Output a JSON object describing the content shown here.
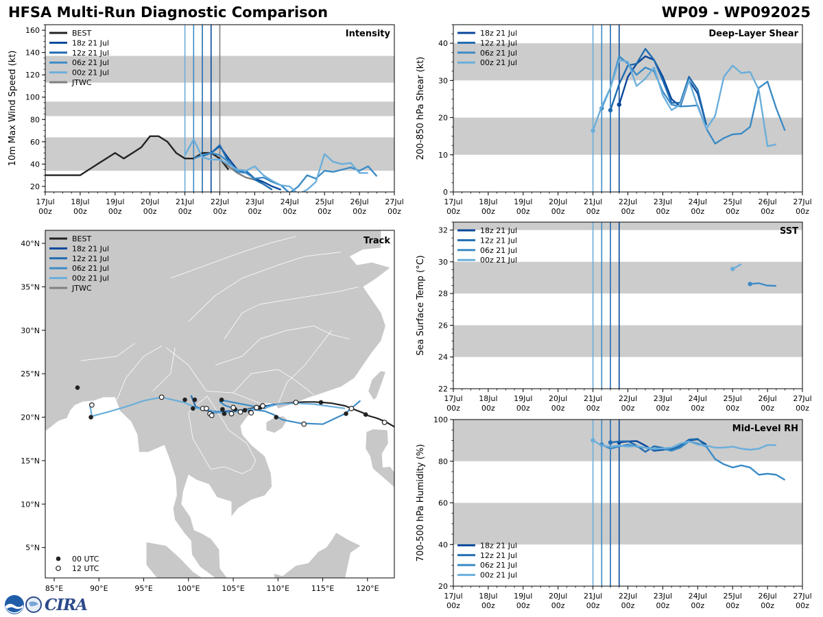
{
  "header": {
    "title": "HFSA Multi-Run Diagnostic Comparison",
    "storm_id": "WP09 - WP092025"
  },
  "logo": {
    "text": "CIRA"
  },
  "colors": {
    "BEST": "#222222",
    "18z 21 Jul": "#08479a",
    "12z 21 Jul": "#1f6bb0",
    "06z 21 Jul": "#3b8bc6",
    "00z 21 Jul": "#6aaedb",
    "JTWC": "#7f7f7f",
    "shade": "#cccccc",
    "land": "#c8c8c8",
    "border": "#ffffff"
  },
  "time_axis": {
    "ticks": [
      "17Jul 00z",
      "18Jul 00z",
      "19Jul 00z",
      "20Jul 00z",
      "21Jul 00z",
      "22Jul 00z",
      "23Jul 00z",
      "24Jul 00z",
      "25Jul 00z",
      "26Jul 00z",
      "27Jul 00z"
    ],
    "init_lines": [
      {
        "name": "00z 21 Jul",
        "t": 4.0
      },
      {
        "name": "06z 21 Jul",
        "t": 4.25
      },
      {
        "name": "12z 21 Jul",
        "t": 4.5
      },
      {
        "name": "18z 21 Jul",
        "t": 4.75
      }
    ],
    "jtwc_line": 5.0
  },
  "chart_data": [
    {
      "id": "intensity",
      "type": "line",
      "title": "Intensity",
      "ylabel": "10m Max Wind Speed (kt)",
      "xlim": [
        0,
        10
      ],
      "ylim": [
        15,
        165
      ],
      "yticks": [
        20,
        40,
        60,
        80,
        100,
        120,
        140,
        160
      ],
      "shaded_bands": [
        [
          34,
          64
        ],
        [
          83,
          96
        ],
        [
          113,
          137
        ]
      ],
      "legend": [
        "BEST",
        "18z 21 Jul",
        "12z 21 Jul",
        "06z 21 Jul",
        "00z 21 Jul",
        "JTWC"
      ],
      "legend_position": "top-left",
      "series": [
        {
          "name": "BEST",
          "x": [
            0,
            0.5,
            1,
            1.5,
            2,
            2.25,
            2.5,
            2.75,
            3,
            3.25,
            3.5,
            3.75,
            4,
            4.25,
            4.5,
            4.75,
            5,
            5.25
          ],
          "y": [
            30,
            30,
            30,
            40,
            50,
            45,
            50,
            55,
            65,
            65,
            60,
            50,
            45,
            45,
            50,
            50,
            45,
            35
          ]
        },
        {
          "name": "JTWC",
          "x": [
            5.0,
            5.25,
            5.5,
            5.75,
            6.0,
            6.25
          ],
          "y": [
            45,
            38,
            32,
            28,
            26,
            24
          ]
        },
        {
          "name": "18z 21 Jul",
          "x": [
            4.75,
            5.0,
            5.25,
            5.5,
            5.75,
            6.0,
            6.25,
            6.5,
            6.75
          ],
          "y": [
            50,
            56,
            45,
            35,
            34,
            27,
            24,
            20,
            17
          ]
        },
        {
          "name": "12z 21 Jul",
          "x": [
            4.5,
            4.75,
            5.0,
            5.25,
            5.5,
            5.75,
            6.0,
            6.25,
            6.5
          ],
          "y": [
            47,
            50,
            57,
            42,
            33,
            34,
            26,
            22,
            17
          ]
        },
        {
          "name": "06z 21 Jul",
          "x": [
            4.25,
            4.5,
            4.75,
            5.0,
            5.25,
            5.5,
            5.75,
            6.0,
            6.25,
            6.5,
            6.75,
            7.0,
            7.25,
            7.5,
            7.75,
            8.0,
            8.25,
            8.5,
            8.75,
            9.0,
            9.25,
            9.5
          ],
          "y": [
            45,
            48,
            50,
            48,
            42,
            33,
            32,
            27,
            28,
            24,
            21,
            14,
            20,
            30,
            27,
            34,
            33,
            35,
            37,
            34,
            38,
            29
          ]
        },
        {
          "name": "00z 21 Jul",
          "x": [
            4.0,
            4.25,
            4.5,
            4.75,
            5.0,
            5.25,
            5.5,
            5.75,
            6.0,
            6.25,
            6.5,
            6.75,
            7.0,
            7.25,
            7.5,
            7.75,
            8.0,
            8.25,
            8.5,
            8.75,
            9.0,
            9.25
          ],
          "y": [
            48,
            62,
            46,
            44,
            44,
            40,
            35,
            34,
            38,
            30,
            25,
            21,
            20,
            13,
            17,
            24,
            49,
            42,
            40,
            41,
            32,
            32
          ]
        }
      ]
    },
    {
      "id": "shear",
      "type": "line",
      "title": "Deep-Layer Shear",
      "ylabel": "200-850 hPa Shear (kt)",
      "xlim": [
        0,
        10
      ],
      "ylim": [
        0,
        45
      ],
      "yticks": [
        0,
        10,
        20,
        30,
        40
      ],
      "shaded_bands": [
        [
          10,
          20
        ],
        [
          30,
          40
        ]
      ],
      "legend": [
        "18z 21 Jul",
        "12z 21 Jul",
        "06z 21 Jul",
        "00z 21 Jul"
      ],
      "legend_position": "top-left",
      "series": [
        {
          "name": "18z 21 Jul",
          "x": [
            4.75,
            5.0,
            5.25,
            5.5,
            5.75,
            6.0,
            6.25,
            6.5,
            6.75,
            7.0,
            7.25
          ],
          "y": [
            23.5,
            31,
            34.5,
            36.5,
            35.5,
            31,
            25,
            23,
            30,
            26.5,
            18
          ]
        },
        {
          "name": "12z 21 Jul",
          "x": [
            4.5,
            4.75,
            5.0,
            5.25,
            5.5,
            5.75,
            6.0,
            6.25,
            6.5,
            6.75,
            7.0,
            7.25
          ],
          "y": [
            22,
            29,
            34,
            34.5,
            38.5,
            35.5,
            30,
            24,
            24,
            31,
            27.5,
            18
          ]
        },
        {
          "name": "06z 21 Jul",
          "x": [
            4.25,
            4.5,
            4.75,
            5.0,
            5.25,
            5.5,
            5.75,
            6.0,
            6.25,
            6.5,
            6.75,
            7.0,
            7.25,
            7.5,
            7.75,
            8.0,
            8.25,
            8.5,
            8.75,
            9.0,
            9.25,
            9.5
          ],
          "y": [
            22.5,
            28,
            36.5,
            34.5,
            31.5,
            33.5,
            32.5,
            27,
            23.5,
            23,
            23.1,
            23.3,
            17,
            13,
            14.5,
            15.5,
            15.7,
            17.5,
            28,
            29.7,
            22.5,
            16.5
          ]
        },
        {
          "name": "00z 21 Jul",
          "x": [
            4.0,
            4.25,
            4.5,
            4.75,
            5.0,
            5.25,
            5.5,
            5.75,
            6.0,
            6.25,
            6.5,
            6.75,
            7.0,
            7.25,
            7.5,
            7.75,
            8.0,
            8.25,
            8.5,
            8.75,
            9.0,
            9.25
          ],
          "y": [
            16.5,
            23,
            28,
            35.5,
            35,
            28.5,
            30.5,
            33.5,
            26,
            22,
            23.5,
            30,
            23,
            17,
            20.5,
            31,
            34,
            32,
            32.3,
            27.5,
            12.3,
            12.8
          ]
        }
      ]
    },
    {
      "id": "sst",
      "type": "line",
      "title": "SST",
      "ylabel": "Sea Surface Temp (°C)",
      "xlim": [
        0,
        10
      ],
      "ylim": [
        22,
        32.5
      ],
      "yticks": [
        22,
        24,
        26,
        28,
        30,
        32
      ],
      "shaded_bands": [
        [
          24,
          26
        ],
        [
          28,
          30
        ],
        [
          32,
          32.5
        ]
      ],
      "legend": [
        "18z 21 Jul",
        "12z 21 Jul",
        "06z 21 Jul",
        "00z 21 Jul"
      ],
      "legend_position": "top-left",
      "series": [
        {
          "name": "06z 21 Jul",
          "x": [
            8.5,
            8.75,
            9.0,
            9.25
          ],
          "y": [
            28.6,
            28.65,
            28.5,
            28.48
          ]
        },
        {
          "name": "00z 21 Jul",
          "x": [
            8.0,
            8.25
          ],
          "y": [
            29.55,
            29.85
          ]
        }
      ]
    },
    {
      "id": "rh",
      "type": "line",
      "title": "Mid-Level RH",
      "ylabel": "700-500 hPa Humidity (%)",
      "xlim": [
        0,
        10
      ],
      "ylim": [
        20,
        100
      ],
      "yticks": [
        20,
        40,
        60,
        80,
        100
      ],
      "shaded_bands": [
        [
          40,
          60
        ],
        [
          80,
          100
        ]
      ],
      "legend": [
        "18z 21 Jul",
        "12z 21 Jul",
        "06z 21 Jul",
        "00z 21 Jul"
      ],
      "legend_position": "bottom-left",
      "series": [
        {
          "name": "18z 21 Jul",
          "x": [
            4.75,
            5.0,
            5.25,
            5.5,
            5.75,
            6.0,
            6.25,
            6.5,
            6.75,
            7.0,
            7.25
          ],
          "y": [
            89,
            89.5,
            89.7,
            87.5,
            85,
            85.5,
            86,
            86.5,
            90,
            90.5,
            88
          ]
        },
        {
          "name": "12z 21 Jul",
          "x": [
            4.5,
            4.75,
            5.0,
            5.25,
            5.5,
            5.75,
            6.0,
            6.25,
            6.5,
            6.75,
            7.0,
            7.25
          ],
          "y": [
            89,
            89.5,
            89.6,
            87.5,
            84.5,
            87.2,
            86.4,
            85.5,
            87.5,
            90.4,
            90.7,
            87
          ]
        },
        {
          "name": "06z 21 Jul",
          "x": [
            4.25,
            4.5,
            4.75,
            5.0,
            5.25,
            5.5,
            5.75,
            6.0,
            6.25,
            6.5,
            6.75,
            7.0,
            7.25,
            7.5,
            7.75,
            8.0,
            8.25,
            8.5,
            8.75,
            9.0,
            9.25,
            9.5
          ],
          "y": [
            88,
            86,
            87,
            88,
            87,
            86.5,
            85.5,
            86,
            85,
            86.5,
            89.5,
            88.5,
            87,
            81,
            78.5,
            77,
            78,
            77,
            73.5,
            74,
            73.5,
            71
          ]
        },
        {
          "name": "00z 21 Jul",
          "x": [
            4.0,
            4.25,
            4.5,
            4.75,
            5.0,
            5.25,
            5.5,
            5.75,
            6.0,
            6.25,
            6.5,
            6.75,
            7.0,
            7.25,
            7.5,
            7.75,
            8.0,
            8.25,
            8.5,
            8.75,
            9.0,
            9.25
          ],
          "y": [
            90,
            87.5,
            87,
            87.5,
            87,
            87.3,
            86.5,
            86,
            86.2,
            86.5,
            88.5,
            89.5,
            88,
            87.5,
            86.5,
            86.5,
            87,
            86,
            85.5,
            86,
            87.8,
            87.7
          ]
        }
      ]
    },
    {
      "id": "track",
      "type": "scatter",
      "title": "Track",
      "xlim": [
        84,
        123
      ],
      "ylim": [
        1.5,
        41.5
      ],
      "xticks": [
        85,
        90,
        95,
        100,
        105,
        110,
        115,
        120
      ],
      "xtick_labels": [
        "85°E",
        "90°E",
        "95°E",
        "100°E",
        "105°E",
        "110°E",
        "115°E",
        "120°E"
      ],
      "yticks": [
        5,
        10,
        15,
        20,
        25,
        30,
        35,
        40
      ],
      "ytick_labels": [
        "5°N",
        "10°N",
        "15°N",
        "20°N",
        "25°N",
        "30°N",
        "35°N",
        "40°N"
      ],
      "legend": [
        "BEST",
        "18z 21 Jul",
        "12z 21 Jul",
        "06z 21 Jul",
        "00z 21 Jul",
        "JTWC"
      ],
      "legend_position": "top-left",
      "marker_legend": [
        "00 UTC",
        "12 UTC"
      ],
      "series": [
        {
          "name": "BEST",
          "lon": [
            124,
            123,
            122,
            121,
            120,
            119.5,
            118.5,
            117.5,
            116,
            115,
            114,
            113,
            112,
            111,
            110,
            109,
            108,
            107.5,
            107,
            106.5,
            106,
            105.5,
            105,
            104.5,
            104,
            103.5,
            103
          ],
          "lat": [
            18.0,
            18.9,
            19.5,
            19.9,
            20.2,
            20.5,
            20.9,
            21.3,
            21.6,
            21.7,
            21.75,
            21.75,
            21.7,
            21.6,
            21.5,
            21.35,
            21.2,
            21.1,
            21.0,
            20.9,
            20.8,
            20.7,
            20.65,
            20.6,
            20.6,
            20.55,
            20.5
          ]
        },
        {
          "name": "18z 21 Jul",
          "lon": [
            109.6,
            108.5,
            107.5,
            106.5,
            105.5,
            104.5,
            103.5,
            102.5
          ],
          "lat": [
            21.5,
            21.2,
            21.0,
            20.8,
            20.65,
            20.7,
            20.6,
            20.5
          ]
        },
        {
          "name": "12z 21 Jul",
          "lon": [
            109.5,
            108.5,
            107.5,
            106.5,
            105.5,
            104.5,
            103.5,
            102.5,
            101.8,
            100.8,
            100.3
          ],
          "lat": [
            21.5,
            21.2,
            21.0,
            20.85,
            20.7,
            20.65,
            20.6,
            20.7,
            20.8,
            21.2,
            22.5
          ]
        },
        {
          "name": "06z 21 Jul",
          "lon": [
            119.2,
            117.5,
            115,
            112.5,
            110.5,
            109.5,
            108.5,
            107,
            105.5,
            104,
            103.5,
            104,
            105.5,
            107,
            108.5,
            109.5
          ],
          "lat": [
            21.9,
            20.4,
            19.2,
            19.3,
            19.7,
            20.3,
            20.7,
            20.9,
            20.8,
            21.4,
            21.8,
            21.9,
            21.6,
            21.3,
            21.0,
            21.5
          ]
        },
        {
          "name": "00z 21 Jul",
          "lon": [
            117.5,
            114,
            112,
            110,
            109,
            107,
            105,
            104,
            103,
            102.5,
            101,
            99.5,
            97,
            95,
            93,
            91,
            89.2,
            89.0,
            89.2
          ],
          "lat": [
            21.0,
            21.5,
            21.6,
            21.5,
            21.2,
            20.9,
            20.6,
            20.5,
            20.55,
            20.8,
            21.0,
            21.7,
            22.3,
            21.9,
            21.2,
            20.6,
            20.1,
            21.3,
            21.4
          ]
        }
      ],
      "markers_00utc": [
        [
          87.6,
          23.4
        ],
        [
          89.1,
          20.0
        ],
        [
          99.6,
          22.0
        ],
        [
          100.5,
          21.0
        ],
        [
          100.7,
          22.0
        ],
        [
          103.7,
          22.0
        ],
        [
          103.8,
          20.9
        ],
        [
          104.0,
          20.4
        ],
        [
          105.2,
          20.9
        ],
        [
          106.3,
          20.8
        ],
        [
          106.9,
          20.6
        ],
        [
          108.0,
          21.1
        ],
        [
          109.8,
          20.0
        ],
        [
          114.8,
          21.7
        ],
        [
          117.6,
          20.4
        ],
        [
          119.8,
          20.3
        ]
      ],
      "markers_12utc": [
        [
          89.2,
          21.4
        ],
        [
          97.0,
          22.3
        ],
        [
          101.6,
          21.0
        ],
        [
          102.0,
          21.0
        ],
        [
          102.4,
          20.4
        ],
        [
          102.6,
          20.2
        ],
        [
          104.8,
          20.4
        ],
        [
          105.0,
          21.1
        ],
        [
          105.8,
          20.6
        ],
        [
          107.0,
          20.5
        ],
        [
          107.6,
          21.1
        ],
        [
          108.3,
          21.3
        ],
        [
          112.0,
          21.7
        ],
        [
          112.9,
          19.2
        ],
        [
          118.2,
          21.0
        ],
        [
          121.9,
          19.4
        ]
      ]
    }
  ]
}
